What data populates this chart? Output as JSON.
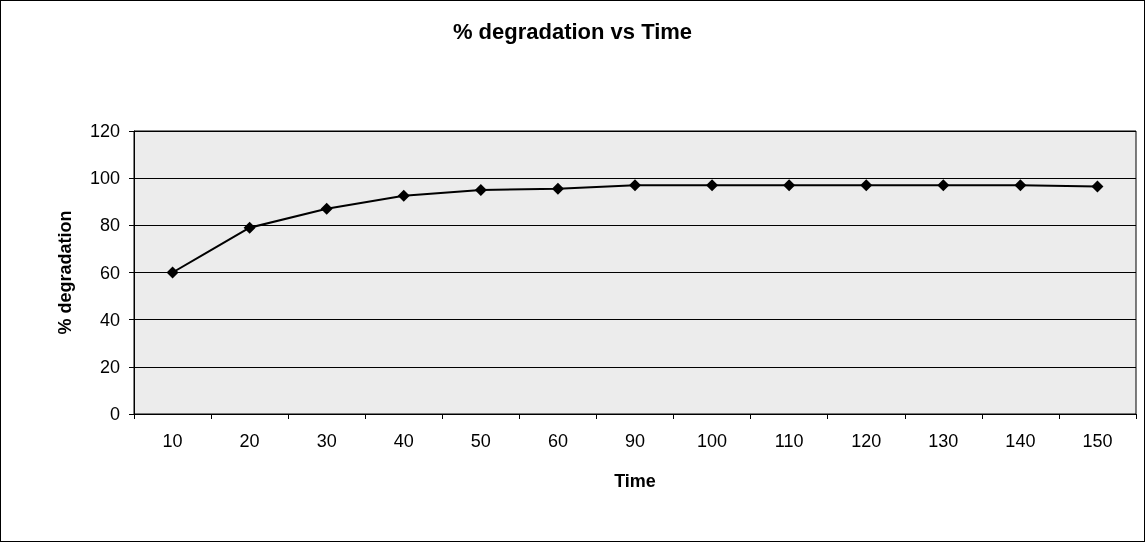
{
  "chart_data": {
    "type": "line",
    "title": "% degradation vs Time",
    "xlabel": "Time",
    "ylabel": "% degradation",
    "categories": [
      "10",
      "20",
      "30",
      "40",
      "50",
      "60",
      "90",
      "100",
      "110",
      "120",
      "130",
      "140",
      "150"
    ],
    "series": [
      {
        "color": "#000000",
        "values": [
          60,
          79,
          87,
          92.5,
          95,
          95.5,
          97,
          97,
          97,
          97,
          97,
          97,
          96.5
        ]
      }
    ],
    "ylim": [
      0,
      120
    ],
    "yticks": [
      0,
      20,
      40,
      60,
      80,
      100,
      120
    ],
    "grid": "y",
    "marker": "diamond",
    "line_style": "solid"
  }
}
